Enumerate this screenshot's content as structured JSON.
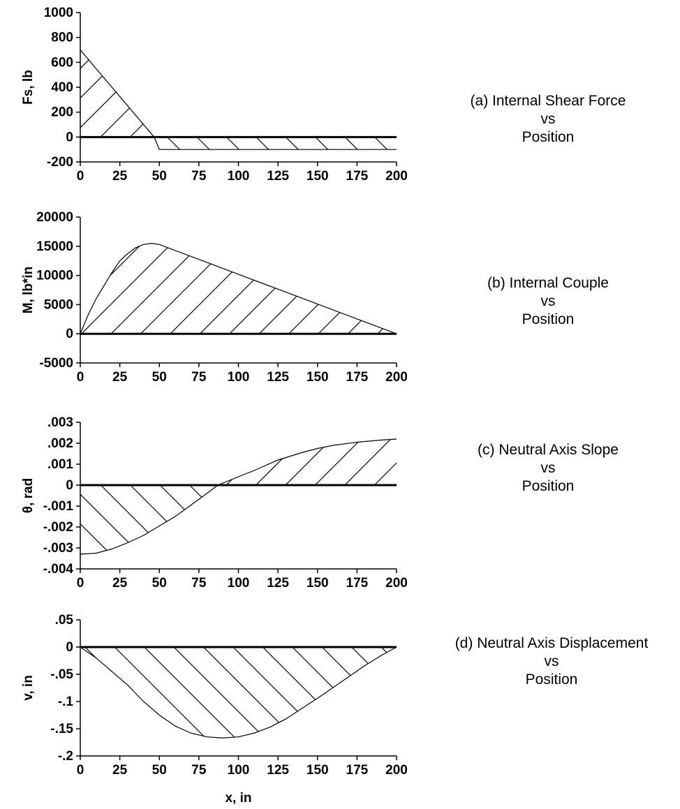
{
  "chart_data": [
    {
      "type": "area",
      "xlim": [
        0,
        200
      ],
      "ylim": [
        -200,
        1000
      ],
      "xticks": [
        "0",
        "25",
        "50",
        "75",
        "100",
        "125",
        "150",
        "175",
        "200"
      ],
      "yticks": [
        "1000",
        "800",
        "600",
        "400",
        "200",
        "0",
        "-200"
      ],
      "ylabel": "Fs, lb",
      "xlabel": "",
      "x": [
        0,
        46.7,
        50,
        50.01,
        200
      ],
      "y": [
        700,
        0,
        -100,
        -100,
        -100
      ],
      "caption": [
        "(a) Internal Shear Force",
        "vs",
        "Position"
      ]
    },
    {
      "type": "area",
      "xlim": [
        0,
        200
      ],
      "ylim": [
        -5000,
        20000
      ],
      "xticks": [
        "0",
        "25",
        "50",
        "75",
        "100",
        "125",
        "150",
        "175",
        "200"
      ],
      "yticks": [
        "20000",
        "15000",
        "10000",
        "5000",
        "0",
        "-5000"
      ],
      "ylabel": "M, lb*in",
      "xlabel": "",
      "x": [
        0,
        5,
        10,
        15,
        20,
        25,
        30,
        35,
        40,
        45,
        50,
        75,
        100,
        125,
        150,
        175,
        200
      ],
      "y": [
        0,
        3250,
        6000,
        8250,
        10500,
        12500,
        13750,
        14750,
        15300,
        15500,
        15300,
        12750,
        10200,
        7650,
        5100,
        2550,
        0
      ],
      "caption": [
        "(b) Internal Couple",
        "vs",
        "Position"
      ]
    },
    {
      "type": "area",
      "xlim": [
        0,
        200
      ],
      "ylim": [
        -0.004,
        0.003
      ],
      "xticks": [
        "0",
        "25",
        "50",
        "75",
        "100",
        "125",
        "150",
        "175",
        "200"
      ],
      "yticks": [
        ".003",
        ".002",
        ".001",
        "0",
        "-.001",
        "-.002",
        "-.003",
        "-.004"
      ],
      "ylabel": "θ, rad",
      "xlabel": "",
      "x": [
        0,
        10,
        20,
        30,
        40,
        50,
        60,
        70,
        80,
        87,
        100,
        110,
        125,
        140,
        150,
        160,
        175,
        190,
        200
      ],
      "y": [
        -0.0033,
        -0.00325,
        -0.00305,
        -0.00275,
        -0.0024,
        -0.00195,
        -0.0015,
        -0.00095,
        -0.0004,
        0,
        0.0004,
        0.0007,
        0.0012,
        0.00155,
        0.00175,
        0.0019,
        0.00205,
        0.00215,
        0.0022
      ],
      "caption": [
        "(c) Neutral Axis Slope",
        "vs",
        "Position"
      ]
    },
    {
      "type": "area",
      "xlim": [
        0,
        200
      ],
      "ylim": [
        -0.2,
        0.05
      ],
      "xticks": [
        "0",
        "25",
        "50",
        "75",
        "100",
        "125",
        "150",
        "175",
        "200"
      ],
      "yticks": [
        ".05",
        "0",
        "-.05",
        "-.1",
        "-.15",
        "-.2"
      ],
      "ylabel": "v, in",
      "xlabel": "x, in",
      "x": [
        0,
        10,
        20,
        30,
        40,
        50,
        60,
        70,
        80,
        90,
        100,
        110,
        120,
        130,
        140,
        150,
        160,
        170,
        180,
        190,
        200
      ],
      "y": [
        0,
        -0.02,
        -0.045,
        -0.07,
        -0.1,
        -0.125,
        -0.145,
        -0.158,
        -0.165,
        -0.167,
        -0.165,
        -0.158,
        -0.147,
        -0.132,
        -0.113,
        -0.094,
        -0.074,
        -0.054,
        -0.034,
        -0.016,
        0
      ],
      "caption": [
        "(d) Neutral Axis Displacement",
        "vs",
        "Position"
      ]
    }
  ]
}
